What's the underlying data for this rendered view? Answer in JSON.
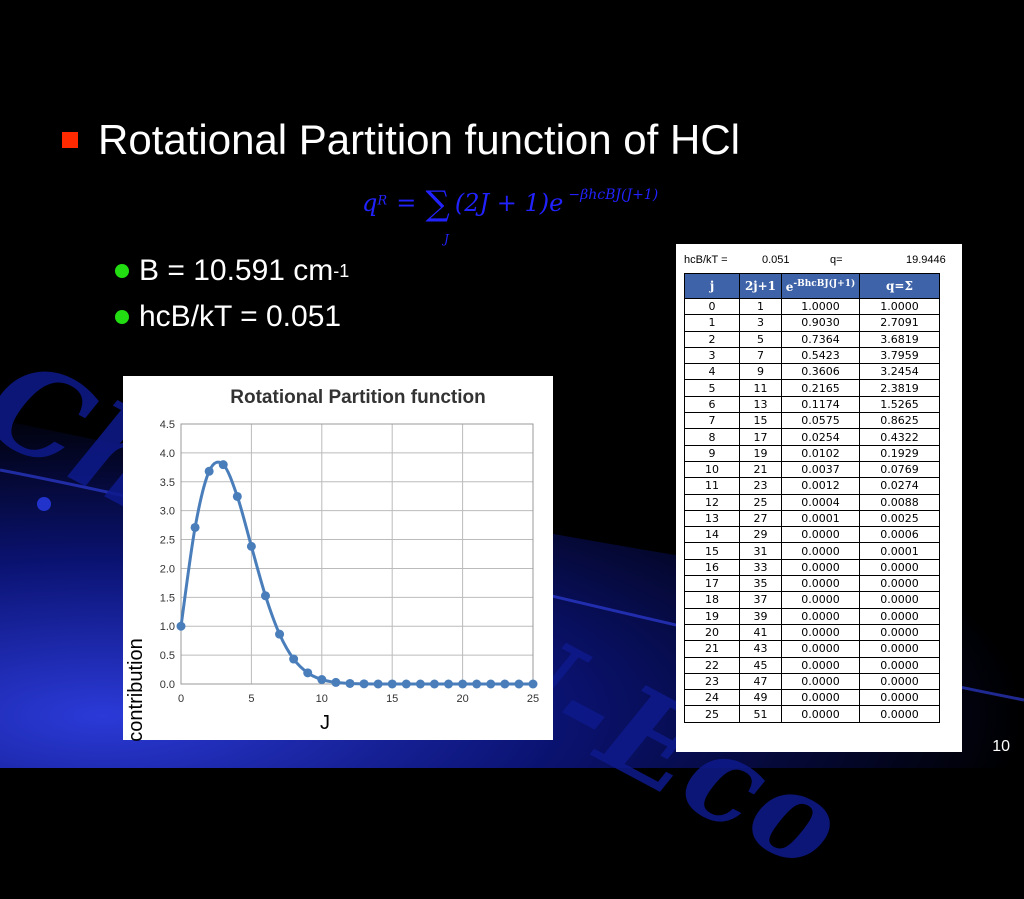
{
  "title": "Rotational Partition function of HCl",
  "formula": {
    "lhs": "q",
    "lhs_sup": "R",
    "eq": "=",
    "sum": "∑",
    "sum_index": "J",
    "term": "(2J + 1)e",
    "exponent": "−βhcBJ(J+1)"
  },
  "bullets": {
    "b_text": "B = 10.591 cm",
    "b_sup": "-1",
    "hcb_text": "hcB/kT = 0.051"
  },
  "watermark": "Chem.KU-Eco",
  "page_number": "10",
  "table": {
    "param_label": "hcB/kT =",
    "param_value": "0.051",
    "q_label": "q=",
    "q_value": "19.9446",
    "headers": {
      "j": "j",
      "g": "2j+1",
      "e": "e",
      "e_sup": "-BhcBJ(J+1)",
      "q": "q=Σ"
    },
    "rows": [
      [
        "0",
        "1",
        "1.0000",
        "1.0000"
      ],
      [
        "1",
        "3",
        "0.9030",
        "2.7091"
      ],
      [
        "2",
        "5",
        "0.7364",
        "3.6819"
      ],
      [
        "3",
        "7",
        "0.5423",
        "3.7959"
      ],
      [
        "4",
        "9",
        "0.3606",
        "3.2454"
      ],
      [
        "5",
        "11",
        "0.2165",
        "2.3819"
      ],
      [
        "6",
        "13",
        "0.1174",
        "1.5265"
      ],
      [
        "7",
        "15",
        "0.0575",
        "0.8625"
      ],
      [
        "8",
        "17",
        "0.0254",
        "0.4322"
      ],
      [
        "9",
        "19",
        "0.0102",
        "0.1929"
      ],
      [
        "10",
        "21",
        "0.0037",
        "0.0769"
      ],
      [
        "11",
        "23",
        "0.0012",
        "0.0274"
      ],
      [
        "12",
        "25",
        "0.0004",
        "0.0088"
      ],
      [
        "13",
        "27",
        "0.0001",
        "0.0025"
      ],
      [
        "14",
        "29",
        "0.0000",
        "0.0006"
      ],
      [
        "15",
        "31",
        "0.0000",
        "0.0001"
      ],
      [
        "16",
        "33",
        "0.0000",
        "0.0000"
      ],
      [
        "17",
        "35",
        "0.0000",
        "0.0000"
      ],
      [
        "18",
        "37",
        "0.0000",
        "0.0000"
      ],
      [
        "19",
        "39",
        "0.0000",
        "0.0000"
      ],
      [
        "20",
        "41",
        "0.0000",
        "0.0000"
      ],
      [
        "21",
        "43",
        "0.0000",
        "0.0000"
      ],
      [
        "22",
        "45",
        "0.0000",
        "0.0000"
      ],
      [
        "23",
        "47",
        "0.0000",
        "0.0000"
      ],
      [
        "24",
        "49",
        "0.0000",
        "0.0000"
      ],
      [
        "25",
        "51",
        "0.0000",
        "0.0000"
      ]
    ]
  },
  "chart_data": {
    "type": "line",
    "title": "Rotational Partition function",
    "xlabel": "J",
    "ylabel": "contribution",
    "xlim": [
      0,
      25
    ],
    "ylim": [
      0,
      4.5
    ],
    "xticks": [
      "0",
      "5",
      "10",
      "15",
      "20",
      "25"
    ],
    "yticks": [
      "0.0",
      "0.5",
      "1.0",
      "1.5",
      "2.0",
      "2.5",
      "3.0",
      "3.5",
      "4.0",
      "4.5"
    ],
    "grid": true,
    "series": [
      {
        "color": "#4a7ebb",
        "x": [
          0,
          1,
          2,
          3,
          4,
          5,
          6,
          7,
          8,
          9,
          10,
          11,
          12,
          13,
          14,
          15,
          16,
          17,
          18,
          19,
          20,
          21,
          22,
          23,
          24,
          25
        ],
        "y": [
          1.0,
          2.7091,
          3.6819,
          3.7959,
          3.2454,
          2.3819,
          1.5265,
          0.8625,
          0.4322,
          0.1929,
          0.0769,
          0.0274,
          0.0088,
          0.0025,
          0.0006,
          0.0001,
          0,
          0,
          0,
          0,
          0,
          0,
          0,
          0,
          0,
          0
        ]
      }
    ]
  }
}
